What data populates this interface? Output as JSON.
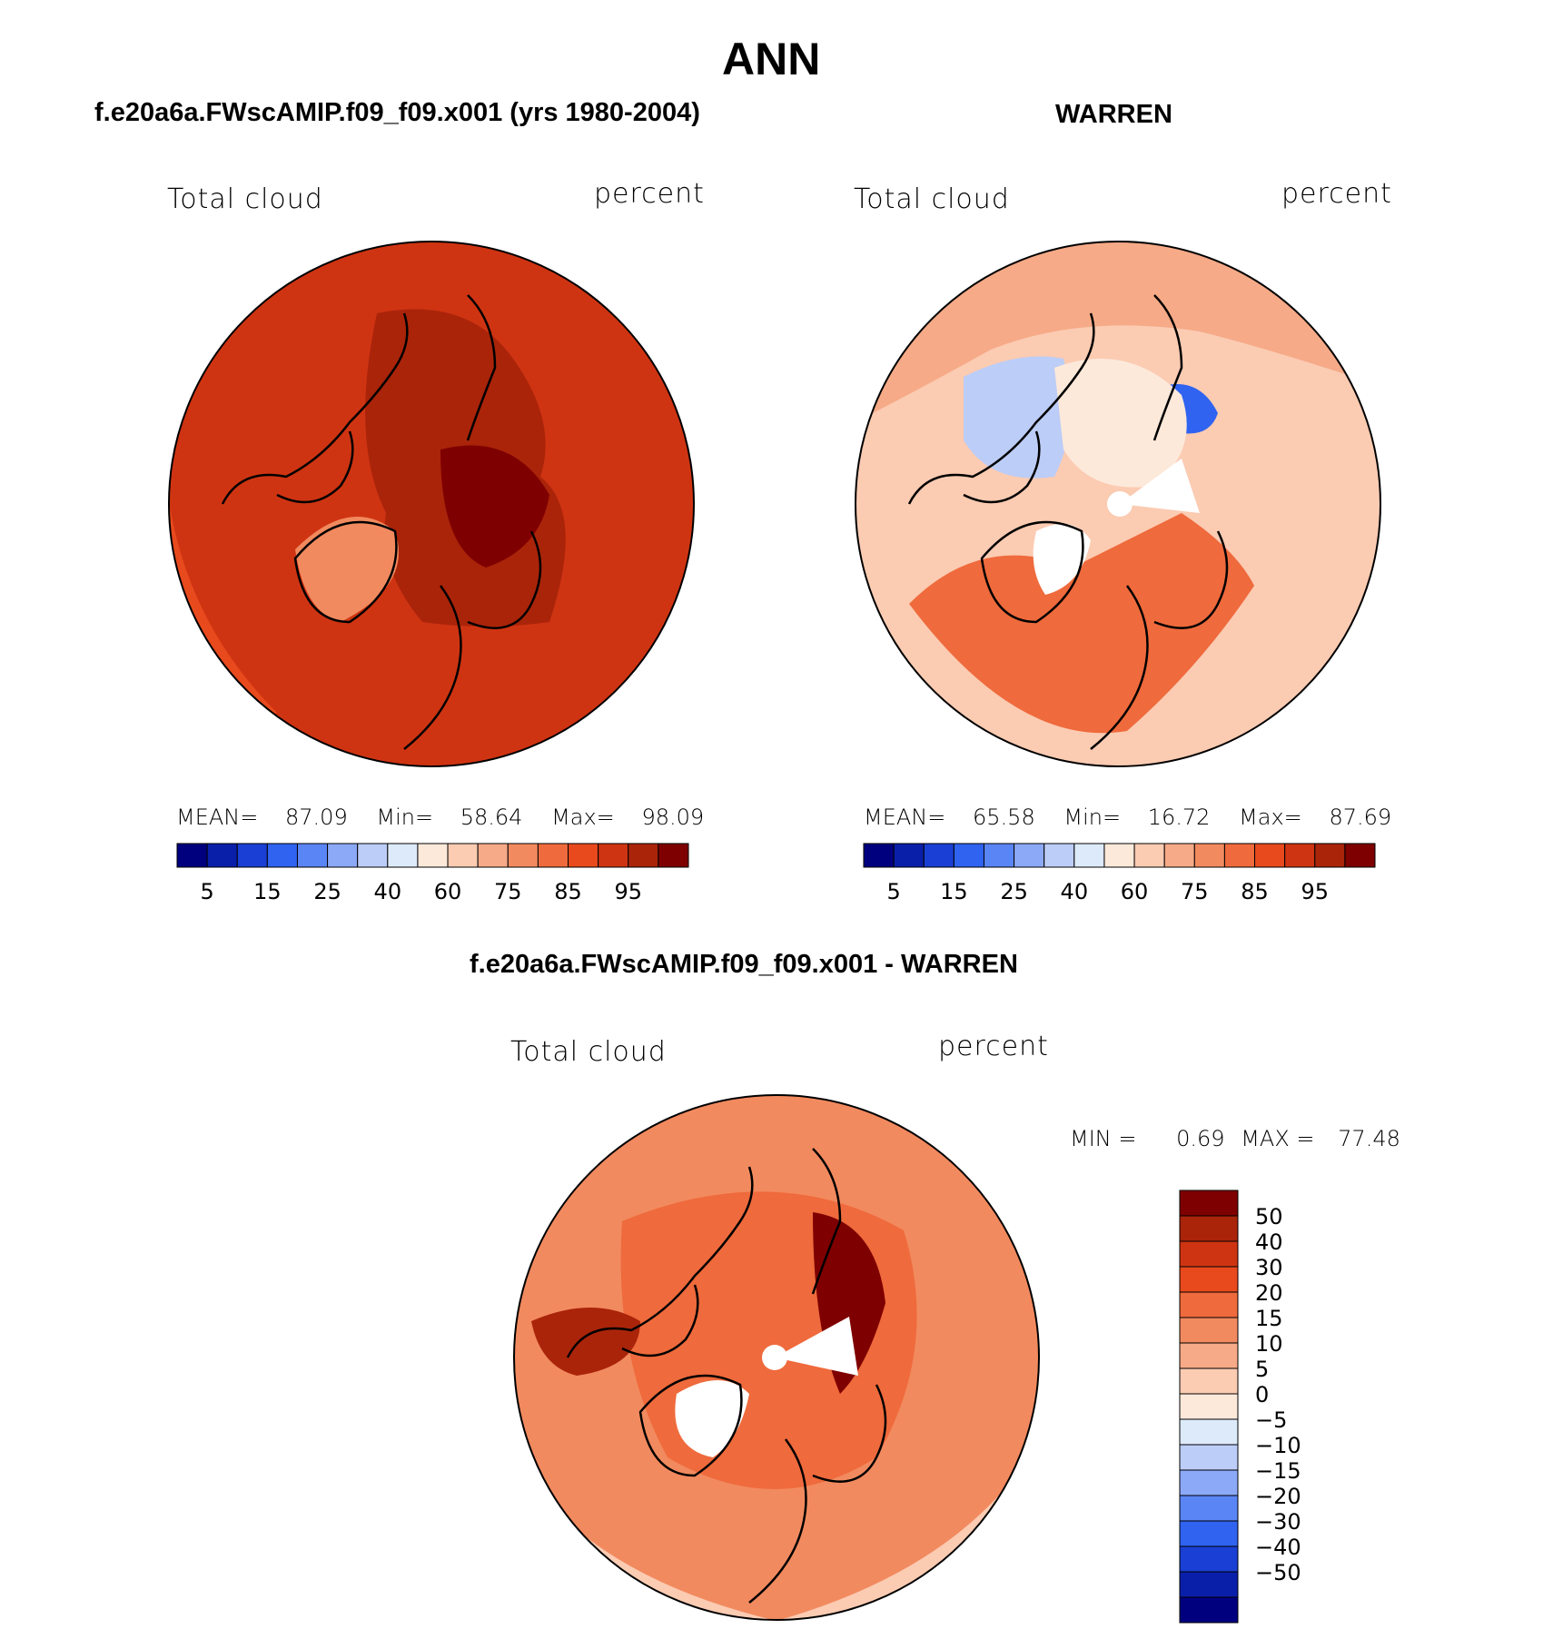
{
  "figure": {
    "title": "ANN",
    "diff_title": "f.e20a6a.FWscAMIP.f09_f09.x001 - WARREN"
  },
  "panels": [
    {
      "id": "model",
      "title": "f.e20a6a.FWscAMIP.f09_f09.x001 (yrs 1980-2004)",
      "variable": "Total cloud",
      "units": "percent",
      "stats": {
        "mean_label": "MEAN=",
        "mean": "87.09",
        "min_label": "Min=",
        "min": "58.64",
        "max_label": "Max=",
        "max": "98.09"
      }
    },
    {
      "id": "obs",
      "title": "WARREN",
      "variable": "Total cloud",
      "units": "percent",
      "stats": {
        "mean_label": "MEAN=",
        "mean": "65.58",
        "min_label": "Min=",
        "min": "16.72",
        "max_label": "Max=",
        "max": "87.69"
      }
    },
    {
      "id": "diff",
      "variable": "Total cloud",
      "units": "percent",
      "stats": {
        "min_label": "MIN =",
        "min": "0.69",
        "max_label": "MAX =",
        "max": "77.48"
      }
    }
  ],
  "colorbar_abs": {
    "colors": [
      "#00007f",
      "#0a1fa9",
      "#1a3fd4",
      "#2f63f0",
      "#5a85f5",
      "#8ca9f7",
      "#bccdf7",
      "#ddeafa",
      "#fde9da",
      "#fbcbb2",
      "#f6aa87",
      "#f28a5f",
      "#ef6a3c",
      "#e84a1d",
      "#cf3412",
      "#aa240a",
      "#7f0000"
    ],
    "tick_labels": [
      "5",
      "15",
      "25",
      "40",
      "60",
      "75",
      "85",
      "95"
    ]
  },
  "colorbar_diff": {
    "colors": [
      "#00007f",
      "#0a1fa9",
      "#1a3fd4",
      "#2f63f0",
      "#5a85f5",
      "#8ca9f7",
      "#bccdf7",
      "#ddeafa",
      "#fde9da",
      "#fbcbb2",
      "#f6aa87",
      "#f28a5f",
      "#ef6a3c",
      "#e84a1d",
      "#cf3412",
      "#aa240a",
      "#7f0000"
    ],
    "tick_labels": [
      "50",
      "40",
      "30",
      "20",
      "15",
      "10",
      "5",
      "0",
      "−5",
      "−10",
      "−15",
      "−20",
      "−30",
      "−40",
      "−50"
    ]
  },
  "map_fill": {
    "model": [
      "#cf3412",
      "#aa240a",
      "#e84a1d",
      "#f28a5f",
      "#7f0000"
    ],
    "obs": [
      "#fbcbb2",
      "#f6aa87",
      "#ef6a3c",
      "#bccdf7",
      "#2f63f0",
      "#fde9da"
    ],
    "diff": [
      "#f28a5f",
      "#ef6a3c",
      "#aa240a",
      "#7f0000",
      "#fbcbb2"
    ]
  }
}
